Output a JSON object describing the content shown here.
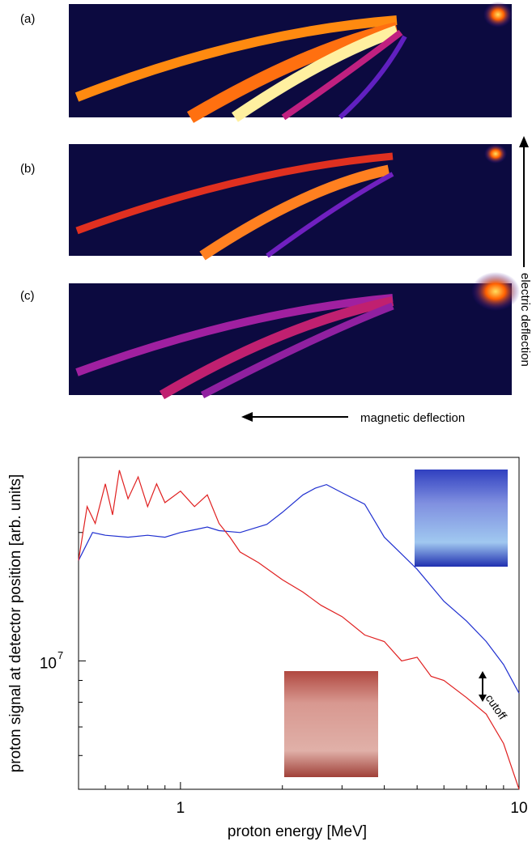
{
  "figure": {
    "panels": [
      "(a)",
      "(b)",
      "(c)"
    ],
    "electric_label": "electric deflection",
    "magnetic_label": "magnetic deflection"
  },
  "chart_data": {
    "type": "line",
    "xlabel": "proton energy [MeV]",
    "ylabel": "proton signal at detector position [arb. units]",
    "annotation": "cutoff",
    "xscale": "log",
    "yscale": "log",
    "xlim": [
      0.5,
      10
    ],
    "ylim": [
      5000000,
      30000000
    ],
    "xticks": [
      1,
      10
    ],
    "xminorticks": [
      0.6,
      0.7,
      0.8,
      0.9,
      2,
      3,
      4,
      5,
      6,
      7,
      8,
      9
    ],
    "yticks": [
      {
        "value": 10000000,
        "label": "10",
        "exponent": "7"
      }
    ],
    "yminorticks": [
      6000000,
      7000000,
      8000000,
      9000000,
      20000000
    ],
    "series": [
      {
        "color": "#2030d0",
        "x": [
          0.5,
          0.55,
          0.6,
          0.7,
          0.8,
          0.9,
          1.0,
          1.1,
          1.2,
          1.3,
          1.5,
          1.8,
          2.0,
          2.3,
          2.5,
          2.7,
          3.0,
          3.5,
          4.0,
          4.5,
          5.0,
          6.0,
          7.0,
          8.0,
          9.0,
          10
        ],
        "values": [
          17200000,
          20000000,
          19700000,
          19500000,
          19700000,
          19500000,
          20000000,
          20300000,
          20600000,
          20200000,
          20000000,
          20900000,
          22300000,
          24500000,
          25400000,
          25900000,
          24800000,
          23300000,
          19500000,
          17800000,
          16400000,
          13800000,
          12400000,
          11100000,
          9800000,
          8400000
        ]
      },
      {
        "color": "#e02020",
        "x": [
          0.5,
          0.53,
          0.56,
          0.6,
          0.63,
          0.66,
          0.7,
          0.75,
          0.8,
          0.85,
          0.9,
          1.0,
          1.1,
          1.2,
          1.3,
          1.4,
          1.5,
          1.7,
          2.0,
          2.3,
          2.6,
          3.0,
          3.5,
          4.0,
          4.5,
          5.0,
          5.5,
          6.0,
          7.0,
          8.0,
          9.0,
          10
        ],
        "values": [
          17200000,
          23000000,
          21000000,
          26000000,
          22000000,
          28000000,
          24000000,
          27000000,
          23000000,
          26000000,
          23500000,
          25000000,
          23000000,
          24500000,
          21000000,
          19500000,
          18000000,
          17000000,
          15500000,
          14500000,
          13500000,
          12700000,
          11500000,
          11100000,
          10000000,
          10200000,
          9200000,
          9000000,
          8200000,
          7500000,
          6400000,
          5000000
        ]
      }
    ]
  }
}
